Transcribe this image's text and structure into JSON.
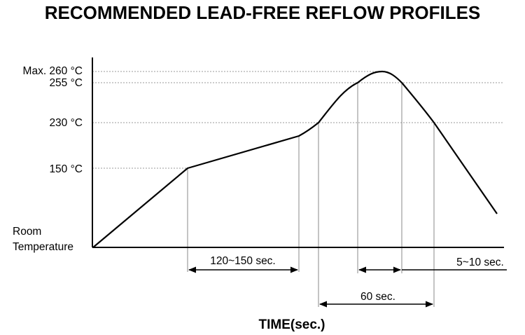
{
  "chart_data": {
    "type": "line",
    "title": "RECOMMENDED LEAD-FREE REFLOW PROFILES",
    "xlabel": "TIME(sec.)",
    "y_tick_labels": {
      "max": "Max. 260 °C",
      "t255": "255 °C",
      "t230": "230 °C",
      "t150": "150 °C",
      "room": "Room\nTemperature"
    },
    "room_label_line1": "Room",
    "room_label_line2": "Temperature",
    "annotations": {
      "soak": "120~150 sec.",
      "above230": "60 sec.",
      "peak": "5~10 sec."
    }
  }
}
